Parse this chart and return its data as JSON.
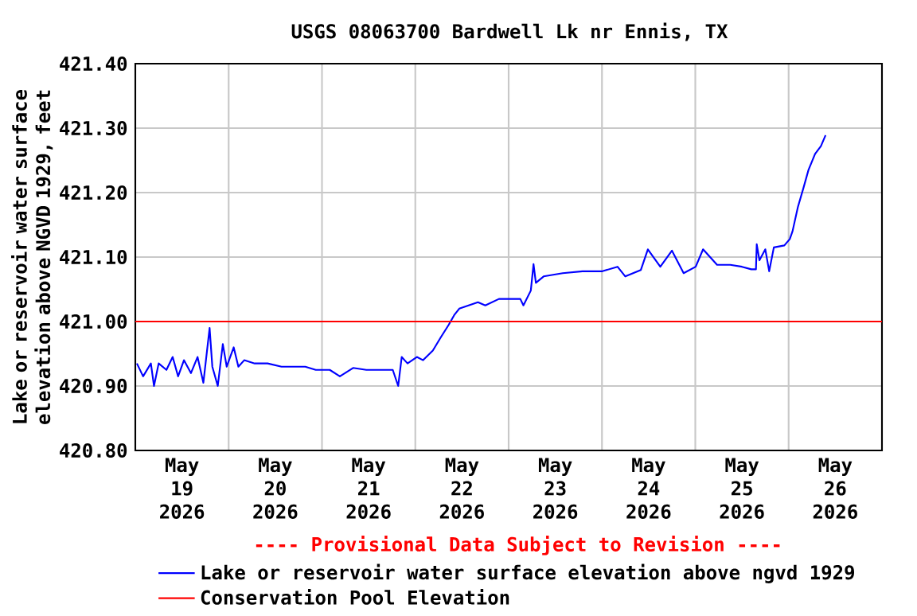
{
  "chart_data": {
    "type": "line",
    "title": "USGS 08063700 Bardwell Lk nr Ennis, TX",
    "ylabel": "Lake or reservoir water surface elevation above NGVD 1929, feet",
    "annotations": [
      "---- Provisional Data Subject to Revision ----"
    ],
    "x": [
      "2026-05-19T00:24",
      "2026-05-19T02:00",
      "2026-05-19T04:00",
      "2026-05-19T04:48",
      "2026-05-19T06:00",
      "2026-05-19T08:00",
      "2026-05-19T09:36",
      "2026-05-19T11:00",
      "2026-05-19T12:30",
      "2026-05-19T14:18",
      "2026-05-19T16:00",
      "2026-05-19T17:30",
      "2026-05-19T19:06",
      "2026-05-19T19:48",
      "2026-05-19T21:12",
      "2026-05-19T22:30",
      "2026-05-19T23:30",
      "2026-05-20T01:18",
      "2026-05-20T02:30",
      "2026-05-20T04:00",
      "2026-05-20T06:42",
      "2026-05-20T10:00",
      "2026-05-20T13:36",
      "2026-05-20T19:42",
      "2026-05-20T22:24",
      "2026-05-21T02:00",
      "2026-05-21T04:36",
      "2026-05-21T08:00",
      "2026-05-21T11:24",
      "2026-05-21T15:00",
      "2026-05-21T18:12",
      "2026-05-21T19:36",
      "2026-05-21T20:30",
      "2026-05-21T22:00",
      "2026-05-22T00:24",
      "2026-05-22T02:00",
      "2026-05-22T04:30",
      "2026-05-22T06:30",
      "2026-05-22T08:36",
      "2026-05-22T10:00",
      "2026-05-22T11:18",
      "2026-05-22T16:06",
      "2026-05-22T18:00",
      "2026-05-22T21:30",
      "2026-05-23T00:00",
      "2026-05-23T03:00",
      "2026-05-23T03:48",
      "2026-05-23T05:42",
      "2026-05-23T06:24",
      "2026-05-23T07:00",
      "2026-05-23T09:00",
      "2026-05-23T13:54",
      "2026-05-23T19:00",
      "2026-05-24T00:06",
      "2026-05-24T04:00",
      "2026-05-24T06:00",
      "2026-05-24T10:00",
      "2026-05-24T11:48",
      "2026-05-24T15:00",
      "2026-05-24T18:00",
      "2026-05-24T21:00",
      "2026-05-25T00:06",
      "2026-05-25T02:00",
      "2026-05-25T05:36",
      "2026-05-25T09:00",
      "2026-05-25T12:00",
      "2026-05-25T14:24",
      "2026-05-25T15:36",
      "2026-05-25T15:48",
      "2026-05-25T16:30",
      "2026-05-25T18:00",
      "2026-05-25T19:00",
      "2026-05-25T20:12",
      "2026-05-25T22:54",
      "2026-05-26T00:18",
      "2026-05-26T01:00",
      "2026-05-26T02:24",
      "2026-05-26T03:48",
      "2026-05-26T05:06",
      "2026-05-26T06:48",
      "2026-05-26T08:18",
      "2026-05-26T09:30"
    ],
    "series": [
      {
        "name": "Lake or reservoir water surface elevation above ngvd 1929",
        "color": "#0000ff",
        "values": [
          420.935,
          420.915,
          420.935,
          420.9,
          420.935,
          420.925,
          420.945,
          420.915,
          420.94,
          420.92,
          420.945,
          420.905,
          420.99,
          420.93,
          420.9,
          420.965,
          420.93,
          420.96,
          420.93,
          420.94,
          420.935,
          420.935,
          420.93,
          420.93,
          420.925,
          420.925,
          420.915,
          420.928,
          420.925,
          420.925,
          420.925,
          420.9,
          420.945,
          420.935,
          420.945,
          420.94,
          420.955,
          420.975,
          420.995,
          421.01,
          421.02,
          421.03,
          421.025,
          421.035,
          421.035,
          421.035,
          421.025,
          421.048,
          421.089,
          421.06,
          421.07,
          421.075,
          421.078,
          421.078,
          421.085,
          421.07,
          421.08,
          421.112,
          421.085,
          421.11,
          421.075,
          421.085,
          421.112,
          421.088,
          421.088,
          421.085,
          421.081,
          421.081,
          421.12,
          421.095,
          421.112,
          421.078,
          421.115,
          421.118,
          421.128,
          421.14,
          421.178,
          421.207,
          421.235,
          421.26,
          421.272,
          421.289
        ]
      }
    ],
    "ref_lines": [
      {
        "axis": "y",
        "value": 421.0,
        "label": "Conservation Pool Elevation",
        "color": "#ff0000"
      }
    ],
    "xlim": [
      "2026-05-19",
      "2026-05-27"
    ],
    "xticks": [
      {
        "value": "2026-05-20",
        "label": null
      },
      {
        "value": "2026-05-21",
        "label": null
      },
      {
        "value": "2026-05-22",
        "label": null
      },
      {
        "value": "2026-05-23",
        "label": null
      },
      {
        "value": "2026-05-24",
        "label": null
      },
      {
        "value": "2026-05-25",
        "label": null
      },
      {
        "value": "2026-05-26",
        "label": null
      },
      {
        "value": "2026-05-19T12:00",
        "label": "May 19 2026"
      },
      {
        "value": "2026-05-20T12:00",
        "label": "May 20 2026"
      },
      {
        "value": "2026-05-21T12:00",
        "label": "May 21 2026"
      },
      {
        "value": "2026-05-22T12:00",
        "label": "May 22 2026"
      },
      {
        "value": "2026-05-23T12:00",
        "label": "May 23 2026"
      },
      {
        "value": "2026-05-24T12:00",
        "label": "May 24 2026"
      },
      {
        "value": "2026-05-25T12:00",
        "label": "May 25 2026"
      },
      {
        "value": "2026-05-26T12:00",
        "label": "May 26 2026"
      }
    ],
    "ylim": [
      420.8,
      421.4
    ],
    "yticks": [
      {
        "value": 420.8,
        "label": "420.80"
      },
      {
        "value": 420.9,
        "label": "420.90"
      },
      {
        "value": 421.0,
        "label": "421.00"
      },
      {
        "value": 421.1,
        "label": "421.10"
      },
      {
        "value": 421.2,
        "label": "421.20"
      },
      {
        "value": 421.3,
        "label": "421.30"
      },
      {
        "value": 421.4,
        "label": "421.40"
      }
    ],
    "grid": true,
    "legend": "bottom",
    "marker": "none",
    "line_style": "solid"
  }
}
